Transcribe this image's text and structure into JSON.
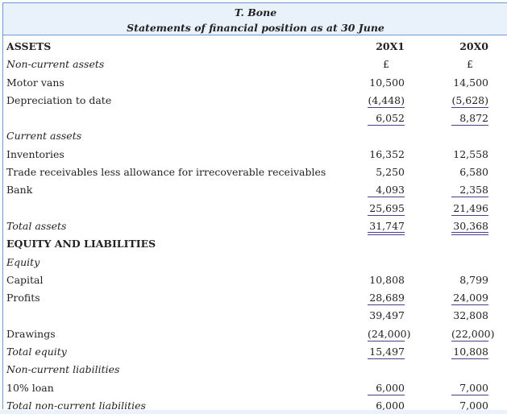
{
  "header": {
    "title": "T. Bone",
    "subtitle": "Statements of financial position as at 30 June"
  },
  "rows": [
    {
      "label": "ASSETS",
      "style": "bold",
      "v1": "20X1",
      "v2": "20X0",
      "rule": "",
      "vstyle": "bold"
    },
    {
      "label": "Non-current assets",
      "style": "italic",
      "v1": "£",
      "v2": "£",
      "rule": "",
      "vstyle": "c"
    },
    {
      "label": "Motor vans",
      "style": "",
      "v1": "10,500",
      "v2": "14,500",
      "rule": ""
    },
    {
      "label": "Depreciation to date",
      "style": "",
      "v1": "(4,448)",
      "v2": "(5,628)",
      "rule": "single"
    },
    {
      "label": "",
      "style": "",
      "v1": "6,052",
      "v2": "8,872",
      "rule": "single"
    },
    {
      "label": "Current assets",
      "style": "italic",
      "v1": "",
      "v2": "",
      "rule": ""
    },
    {
      "label": "Inventories",
      "style": "",
      "v1": "16,352",
      "v2": "12,558",
      "rule": ""
    },
    {
      "label": "Trade receivables less allowance for irrecoverable receivables",
      "style": "",
      "v1": "5,250",
      "v2": "6,580",
      "rule": ""
    },
    {
      "label": "Bank",
      "style": "",
      "v1": "4,093",
      "v2": "2,358",
      "rule": "single"
    },
    {
      "label": "",
      "style": "",
      "v1": "25,695",
      "v2": "21,496",
      "rule": "single"
    },
    {
      "label": "Total assets",
      "style": "italic",
      "v1": "31,747",
      "v2": "30,368",
      "rule": "double"
    },
    {
      "label": "EQUITY AND LIABILITIES",
      "style": "bold",
      "v1": "",
      "v2": "",
      "rule": ""
    },
    {
      "label": "Equity",
      "style": "italic",
      "v1": "",
      "v2": "",
      "rule": ""
    },
    {
      "label": "Capital",
      "style": "",
      "v1": "10,808",
      "v2": "8,799",
      "rule": ""
    },
    {
      "label": "Profits",
      "style": "",
      "v1": "28,689",
      "v2": "24,009",
      "rule": "single"
    },
    {
      "label": "",
      "style": "",
      "v1": "39,497",
      "v2": "32,808",
      "rule": ""
    },
    {
      "label": "Drawings",
      "style": "",
      "v1": "(24,000)",
      "v2": "(22,000)",
      "rule": "single"
    },
    {
      "label": "Total equity",
      "style": "italic",
      "v1": "15,497",
      "v2": "10,808",
      "rule": "single"
    },
    {
      "label": "Non-current liabilities",
      "style": "italic",
      "v1": "",
      "v2": "",
      "rule": ""
    },
    {
      "label": "10% loan",
      "style": "",
      "v1": "6,000",
      "v2": "7,000",
      "rule": "single"
    },
    {
      "label": "Total non-current liabilities",
      "style": "italic",
      "v1": "6,000",
      "v2": "7,000",
      "rule": "single"
    }
  ],
  "colors": {
    "border": "#6b9ad6",
    "header_bg": "#e9f1fb",
    "rule": "#4a3f8c"
  }
}
